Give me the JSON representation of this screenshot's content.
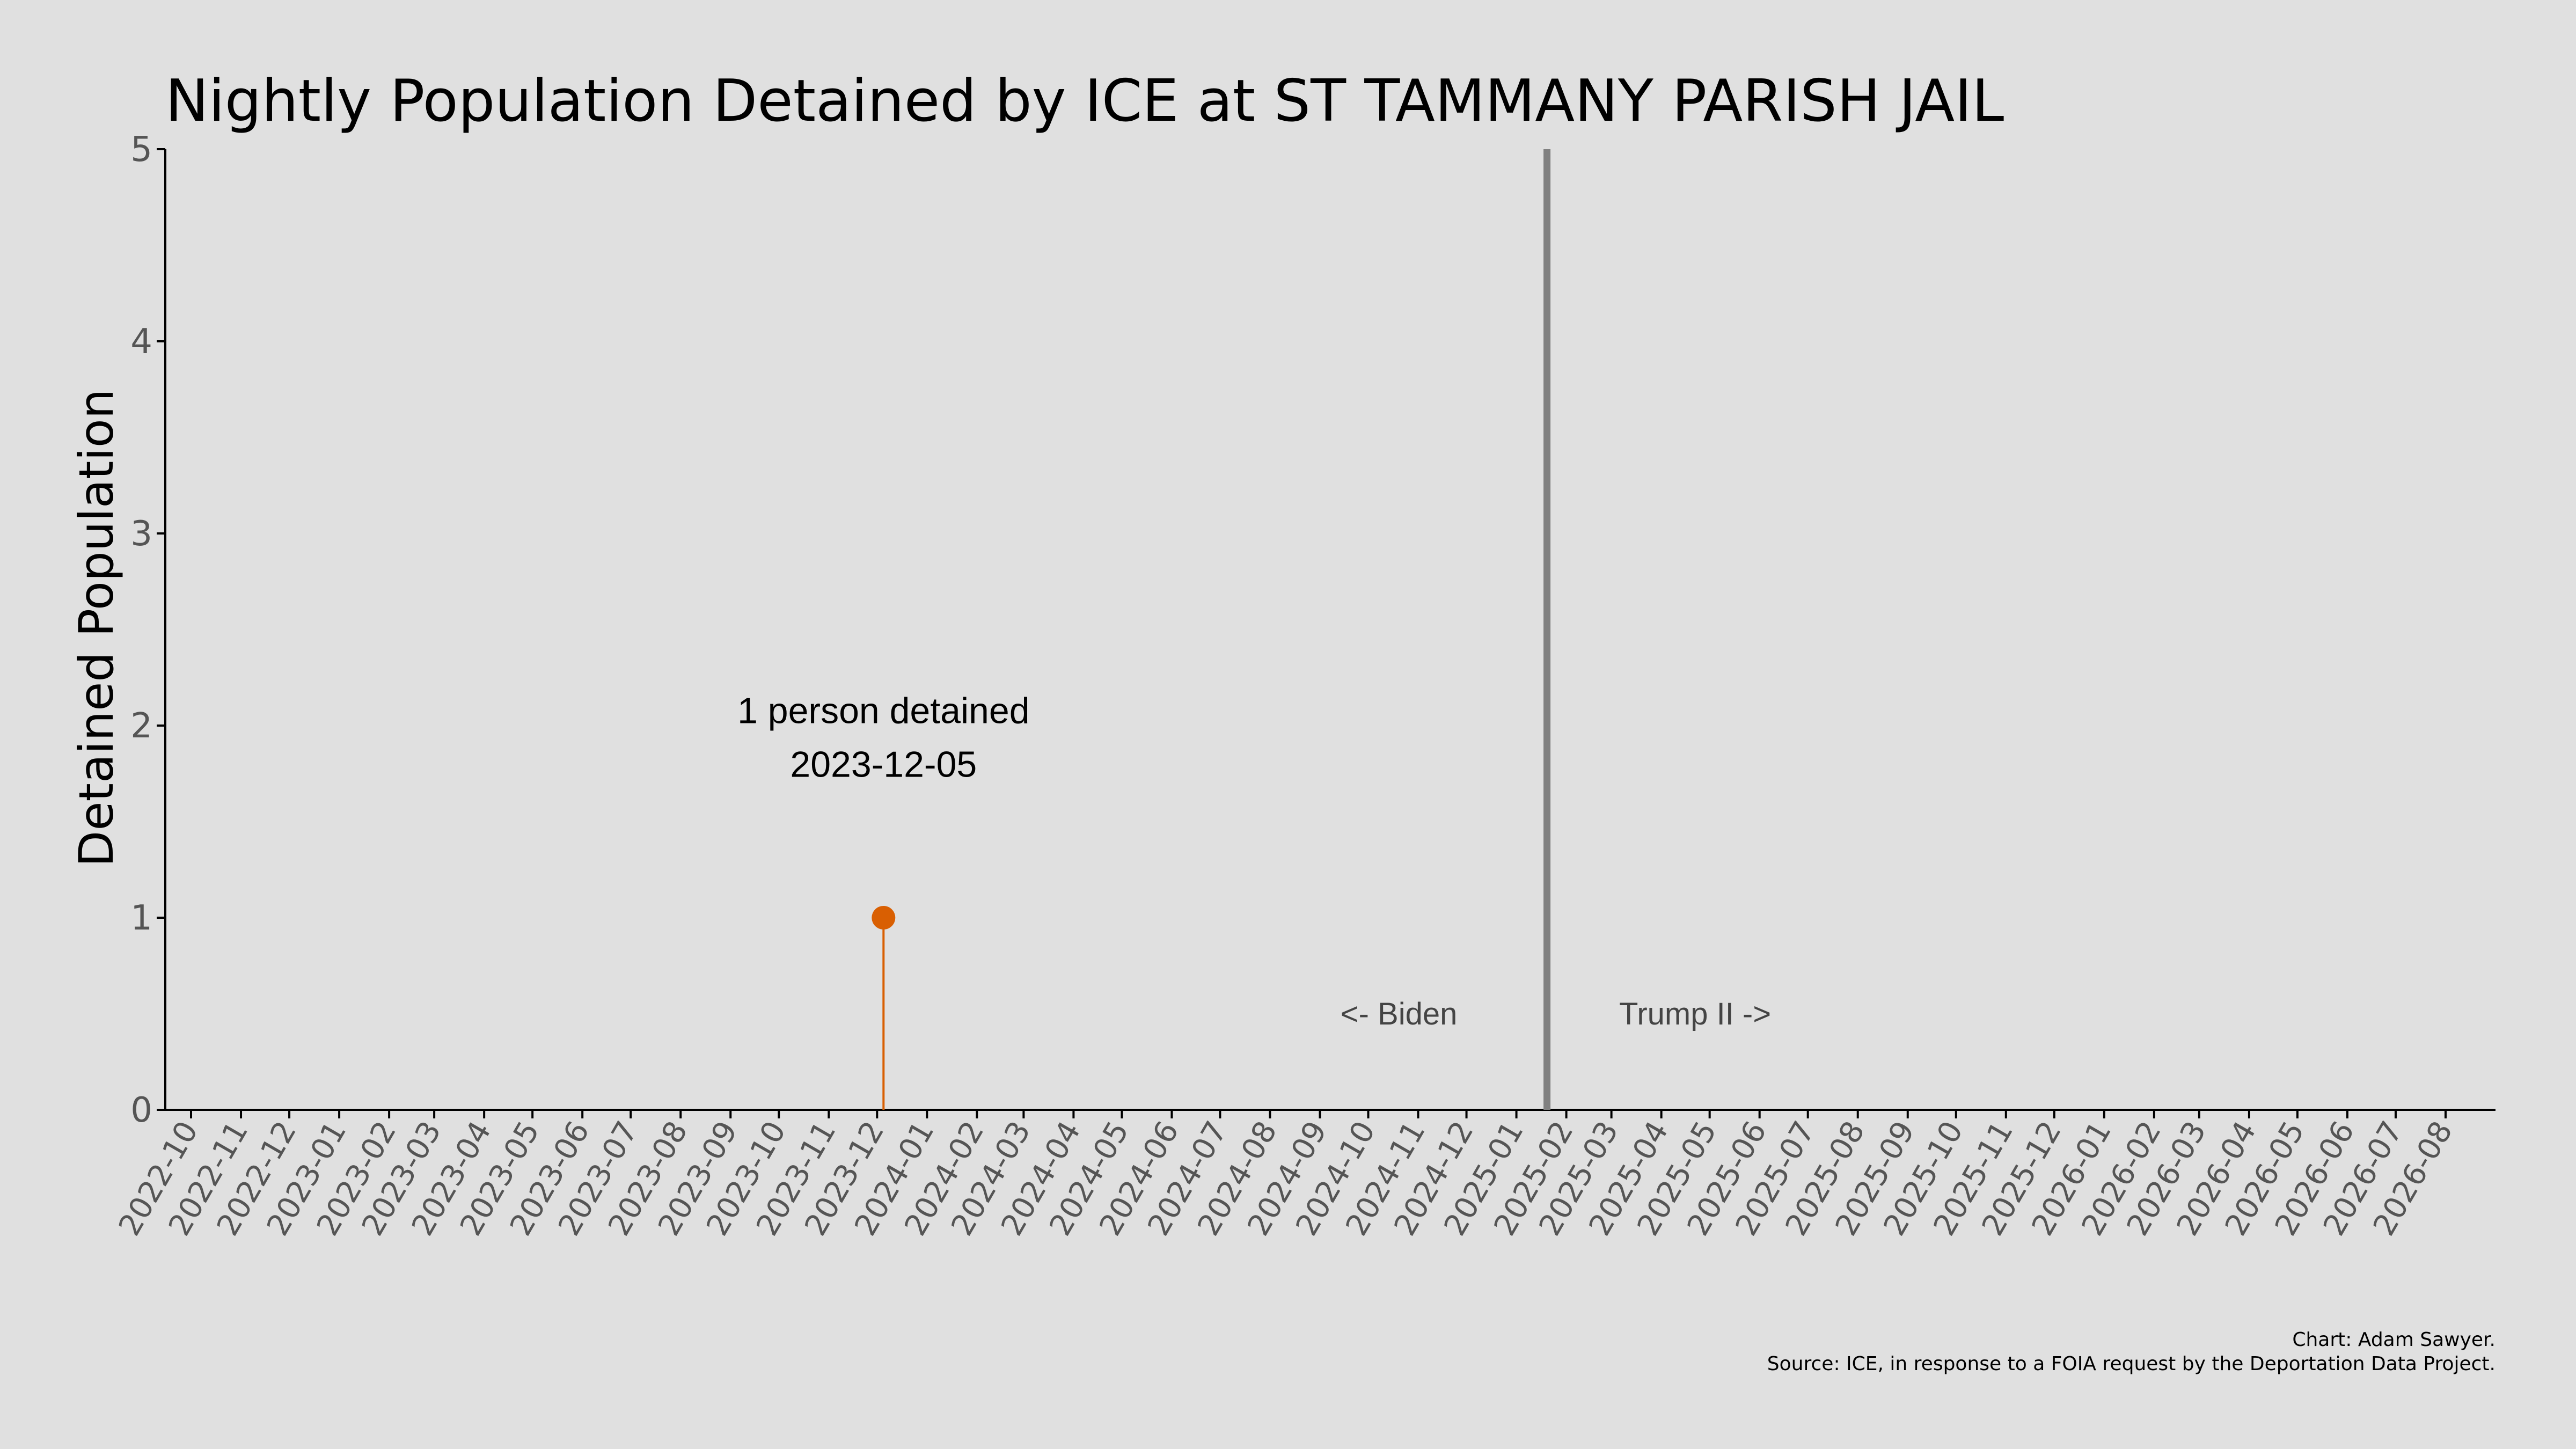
{
  "colors": {
    "background": "#e0e0e0",
    "point": "#d95f02",
    "divider": "#808080",
    "axis": "#000000",
    "tick_label": "#555555"
  },
  "chart_data": {
    "type": "scatter",
    "title": "Nightly Population Detained by ICE at ST TAMMANY PARISH JAIL",
    "xlabel": "",
    "ylabel": "Detained Population",
    "xlim": [
      "2022-09-15",
      "2026-09-01"
    ],
    "ylim": [
      0,
      5
    ],
    "y_ticks": [
      0,
      1,
      2,
      3,
      4,
      5
    ],
    "x_ticks": [
      "2022-10",
      "2022-11",
      "2022-12",
      "2023-01",
      "2023-02",
      "2023-03",
      "2023-04",
      "2023-05",
      "2023-06",
      "2023-07",
      "2023-08",
      "2023-09",
      "2023-10",
      "2023-11",
      "2023-12",
      "2024-01",
      "2024-02",
      "2024-03",
      "2024-04",
      "2024-05",
      "2024-06",
      "2024-07",
      "2024-08",
      "2024-09",
      "2024-10",
      "2024-11",
      "2024-12",
      "2025-01",
      "2025-02",
      "2025-03",
      "2025-04",
      "2025-05",
      "2025-06",
      "2025-07",
      "2025-08",
      "2025-09",
      "2025-10",
      "2025-11",
      "2025-12",
      "2026-01",
      "2026-02",
      "2026-03",
      "2026-04",
      "2026-05",
      "2026-06",
      "2026-07",
      "2026-08"
    ],
    "grid": false,
    "series": [
      {
        "points": [
          {
            "x": "2023-12-05",
            "y": 1
          }
        ]
      }
    ],
    "annotation": {
      "line1": "1 person detained",
      "line2": "2023-12-05",
      "x": "2023-12-05"
    },
    "divider": {
      "x": "2025-01-20",
      "left_label": "<- Biden",
      "right_label": "Trump II ->"
    }
  },
  "footer": {
    "credit": "Chart: Adam Sawyer.",
    "source": "Source: ICE, in response to a FOIA request by the Deportation Data Project."
  }
}
